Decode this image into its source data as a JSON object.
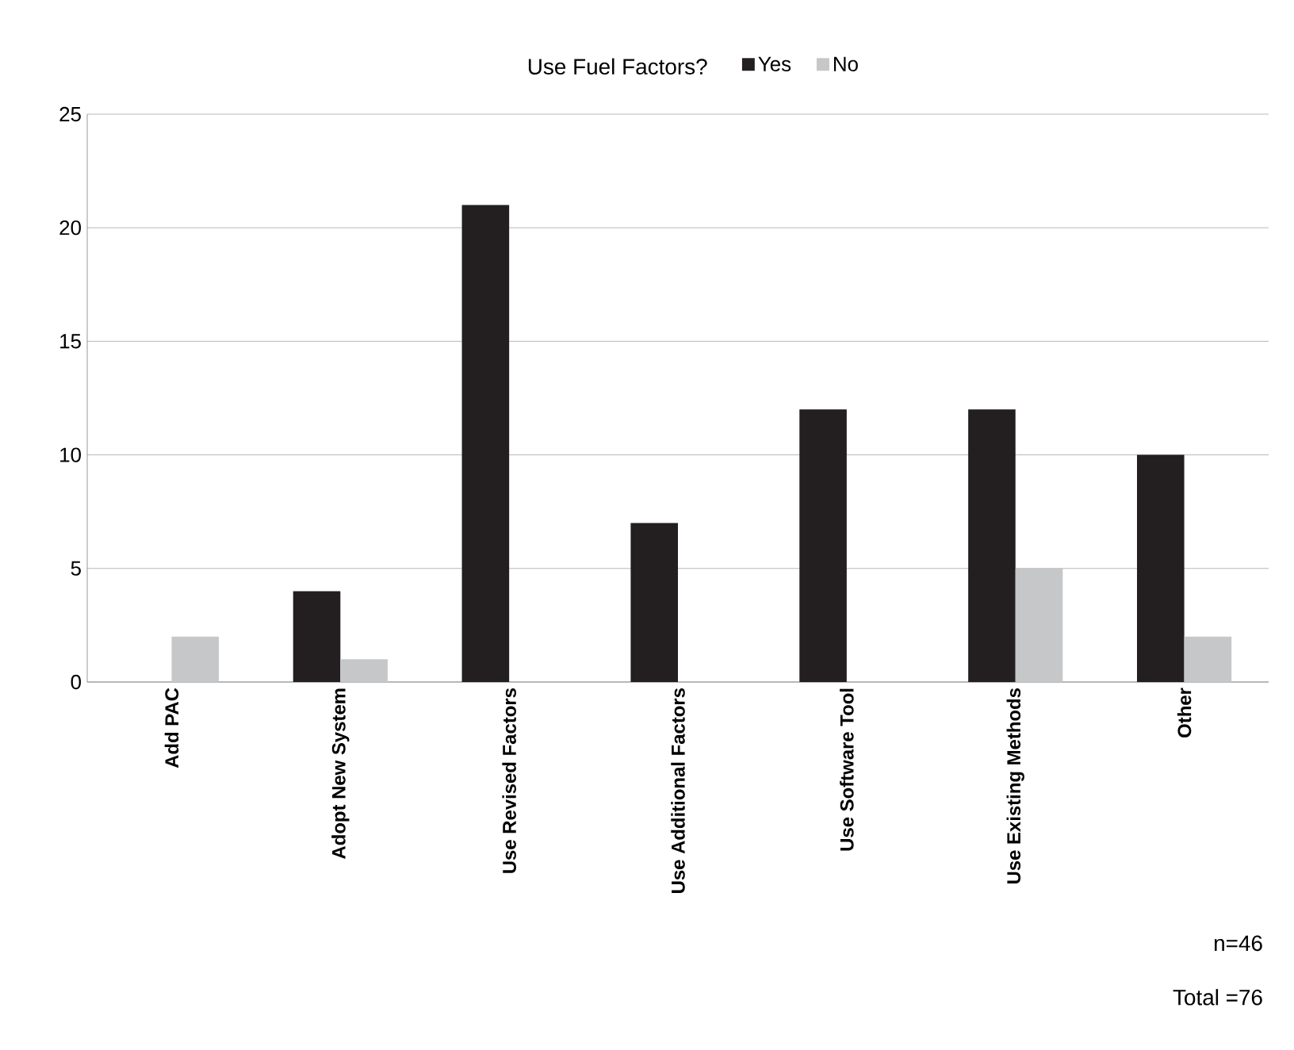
{
  "chart_data": {
    "type": "bar",
    "legend_title": "Use Fuel Factors?",
    "categories": [
      "Add PAC",
      "Adopt New System",
      "Use Revised Factors",
      "Use Additional Factors",
      "Use Software Tool",
      "Use Existing Methods",
      "Other"
    ],
    "series": [
      {
        "name": "Yes",
        "color": "#231f20",
        "values": [
          0,
          4,
          21,
          7,
          12,
          12,
          10
        ]
      },
      {
        "name": "No",
        "color": "#c6c7c8",
        "values": [
          2,
          1,
          0,
          0,
          0,
          5,
          2
        ]
      }
    ],
    "ylim": [
      0,
      25
    ],
    "yticks": [
      0,
      5,
      10,
      15,
      20,
      25
    ],
    "grid": "y",
    "legend": "top",
    "annotations": [
      "n=46",
      "Total =76"
    ]
  }
}
